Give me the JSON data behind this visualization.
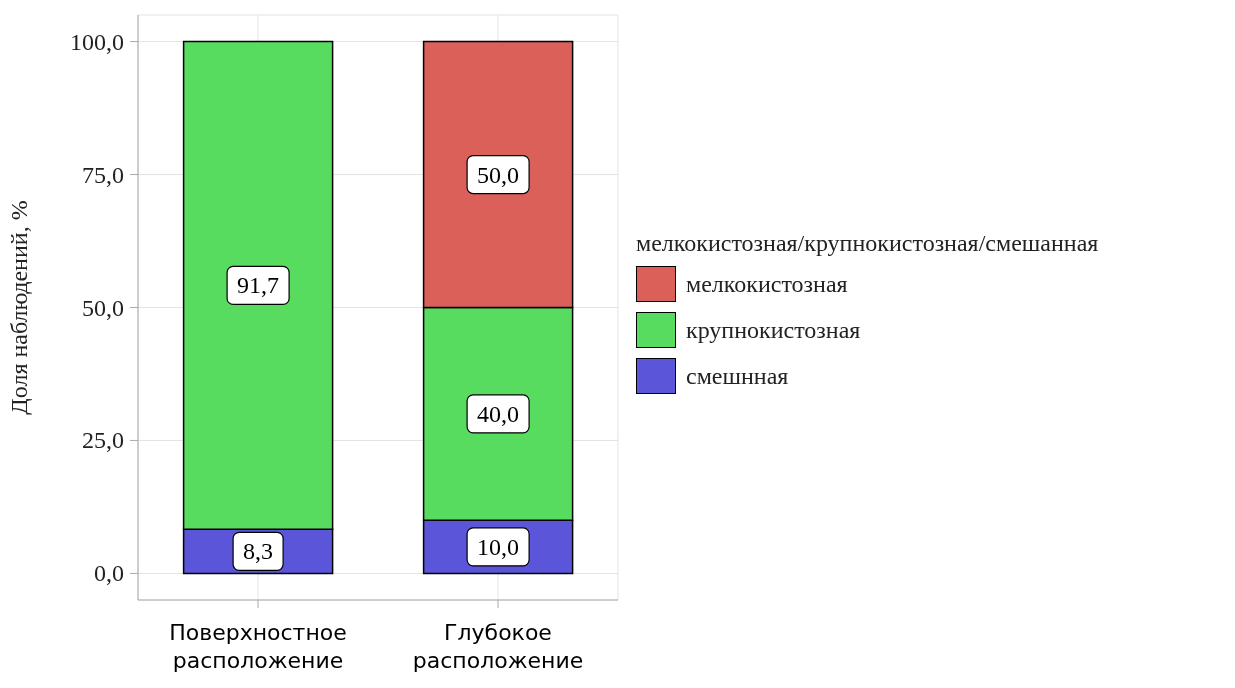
{
  "chart_data": {
    "type": "bar",
    "stacked": true,
    "ylabel": "Доля наблюдений, %",
    "legend_title": "мелкокистозная/крупнокистозная/смешанная",
    "categories": [
      "Поверхностное расположение",
      "Глубокое расположение"
    ],
    "series": [
      {
        "name": "смешнная",
        "color": "#5b55d9",
        "values": [
          8.3,
          10.0
        ],
        "value_labels": [
          "8,3",
          "10,0"
        ]
      },
      {
        "name": "крупнокистозная",
        "color": "#58dc5f",
        "values": [
          91.7,
          40.0
        ],
        "value_labels": [
          "91,7",
          "40,0"
        ]
      },
      {
        "name": "мелкокистозная",
        "color": "#dc605a",
        "values": [
          null,
          50.0
        ],
        "value_labels": [
          null,
          "50,0"
        ]
      }
    ],
    "ylim": [
      -5,
      105
    ],
    "yticks": [
      {
        "value": 0,
        "label": "0,0"
      },
      {
        "value": 25,
        "label": "25,0"
      },
      {
        "value": 50,
        "label": "50,0"
      },
      {
        "value": 75,
        "label": "75,0"
      },
      {
        "value": 100,
        "label": "100,0"
      }
    ],
    "grid": true,
    "legend": "right"
  }
}
